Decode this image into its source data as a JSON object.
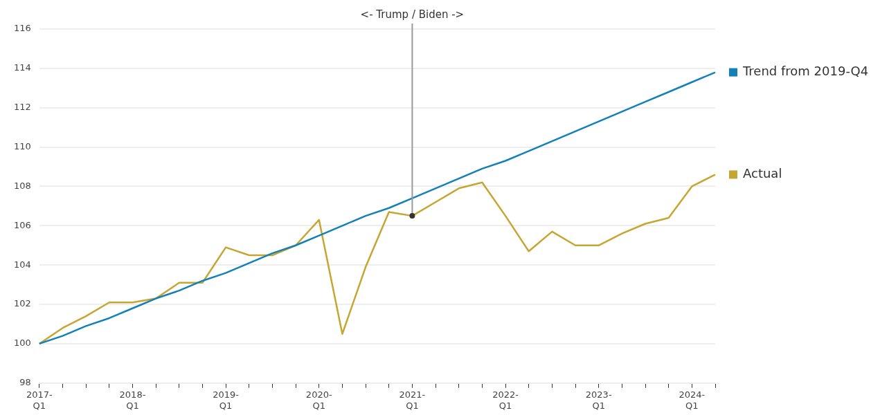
{
  "chart_data": {
    "type": "line",
    "categories": [
      "2017-Q1",
      null,
      null,
      null,
      "2018-Q1",
      null,
      null,
      null,
      "2019-Q1",
      null,
      null,
      null,
      "2020-Q1",
      null,
      null,
      null,
      "2021-Q1",
      null,
      null,
      null,
      "2022-Q1",
      null,
      null,
      null,
      "2023-Q1",
      null,
      null,
      null,
      "2024-Q1",
      null
    ],
    "series": [
      {
        "name": "Trend from 2019-Q4",
        "color": "#1380b8",
        "values": [
          100,
          100.4,
          100.9,
          101.3,
          101.8,
          102.3,
          102.7,
          103.2,
          103.6,
          104.1,
          104.6,
          105.0,
          105.5,
          106.0,
          106.5,
          106.9,
          107.4,
          107.9,
          108.4,
          108.9,
          109.3,
          109.8,
          110.3,
          110.8,
          111.3,
          111.8,
          112.3,
          112.8,
          113.3,
          113.8
        ]
      },
      {
        "name": "Actual",
        "color": "#c6a531",
        "values": [
          100,
          100.8,
          101.4,
          102.1,
          102.1,
          102.3,
          103.1,
          103.1,
          104.9,
          104.5,
          104.5,
          105.0,
          106.3,
          100.5,
          103.9,
          106.7,
          106.5,
          107.2,
          107.9,
          108.2,
          106.5,
          104.7,
          105.7,
          105.0,
          105.0,
          105.6,
          106.1,
          106.4,
          108.0,
          108.6
        ]
      }
    ],
    "ylim": [
      98,
      116
    ],
    "yticks": [
      98,
      100,
      102,
      104,
      106,
      108,
      110,
      112,
      114,
      116
    ],
    "ref_lines": [
      {
        "axis": "x",
        "value": "2021-Q1",
        "label": "<- Trump / Biden ->",
        "color": "#999999"
      }
    ],
    "grid": "y",
    "legend": "right",
    "marker": "none",
    "line_style": "solid"
  }
}
